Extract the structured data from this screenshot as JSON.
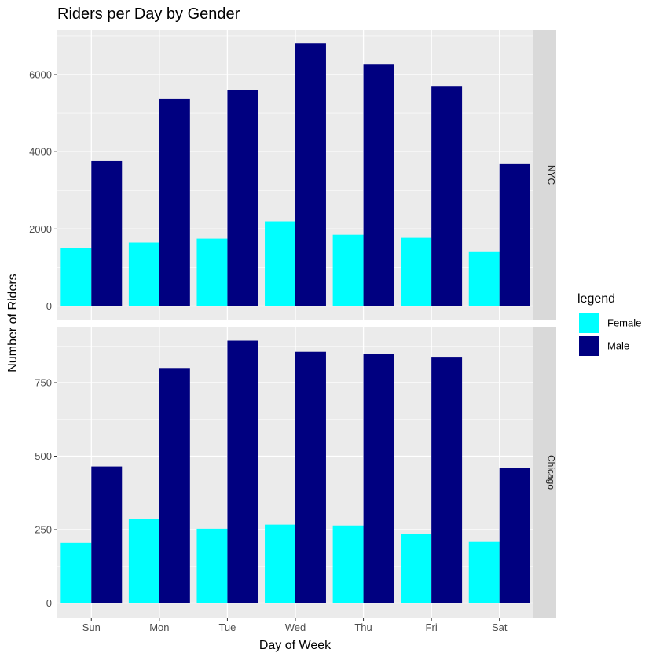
{
  "chart_data": {
    "type": "bar",
    "title": "Riders per Day by Gender",
    "xlabel": "Day of Week",
    "ylabel": "Number of Riders",
    "categories": [
      "Sun",
      "Mon",
      "Tue",
      "Wed",
      "Thu",
      "Fri",
      "Sat"
    ],
    "legend": {
      "title": "legend",
      "placement": "right",
      "entries": [
        "Female",
        "Male"
      ]
    },
    "series_colors": {
      "Female": "#00FFFF",
      "Male": "#000080"
    },
    "panel_background": "#EBEBEB",
    "strip_background": "#D9D9D9",
    "grid": true,
    "facets": [
      {
        "label": "NYC",
        "ylim": [
          0,
          7200
        ],
        "yticks": [
          0,
          2000,
          4000,
          6000
        ],
        "series": [
          {
            "name": "Female",
            "values": [
              1500,
              1650,
              1750,
              2200,
              1850,
              1770,
              1400
            ]
          },
          {
            "name": "Male",
            "values": [
              3760,
              5370,
              5610,
              6810,
              6260,
              5690,
              3680
            ]
          }
        ]
      },
      {
        "label": "Chicago",
        "ylim": [
          0,
          950
        ],
        "yticks": [
          0,
          250,
          500,
          750
        ],
        "series": [
          {
            "name": "Female",
            "values": [
              205,
              285,
              253,
              267,
              264,
              235,
              208
            ]
          },
          {
            "name": "Male",
            "values": [
              465,
              800,
              893,
              855,
              848,
              838,
              460
            ]
          }
        ]
      }
    ]
  }
}
